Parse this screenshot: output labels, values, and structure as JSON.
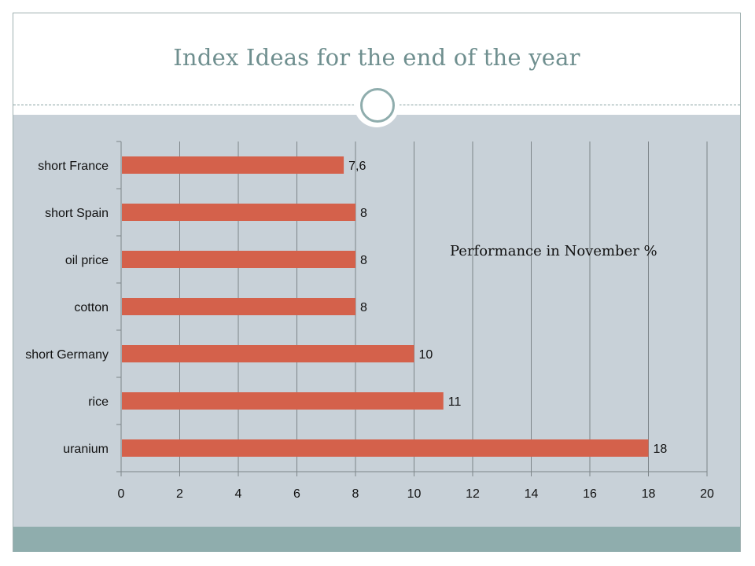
{
  "slide": {
    "title": "Index Ideas for the end of the year"
  },
  "colors": {
    "bar": "#d4614b",
    "panel": "#c8d1d8",
    "accent": "#8fadad",
    "title": "#6f8f8f"
  },
  "chart_data": {
    "type": "bar",
    "orientation": "horizontal",
    "subtitle": "Performance in November %",
    "categories": [
      "short France",
      "short Spain",
      "oil price",
      "cotton",
      "short Germany",
      "rice",
      "uranium"
    ],
    "values": [
      7.6,
      8,
      8,
      8,
      10,
      11,
      18
    ],
    "value_labels": [
      "7,6",
      "8",
      "8",
      "8",
      "10",
      "11",
      "18"
    ],
    "xlim": [
      0,
      20
    ],
    "xticks": [
      0,
      2,
      4,
      6,
      8,
      10,
      12,
      14,
      16,
      18,
      20
    ],
    "grid": "vertical",
    "legend": "none"
  }
}
